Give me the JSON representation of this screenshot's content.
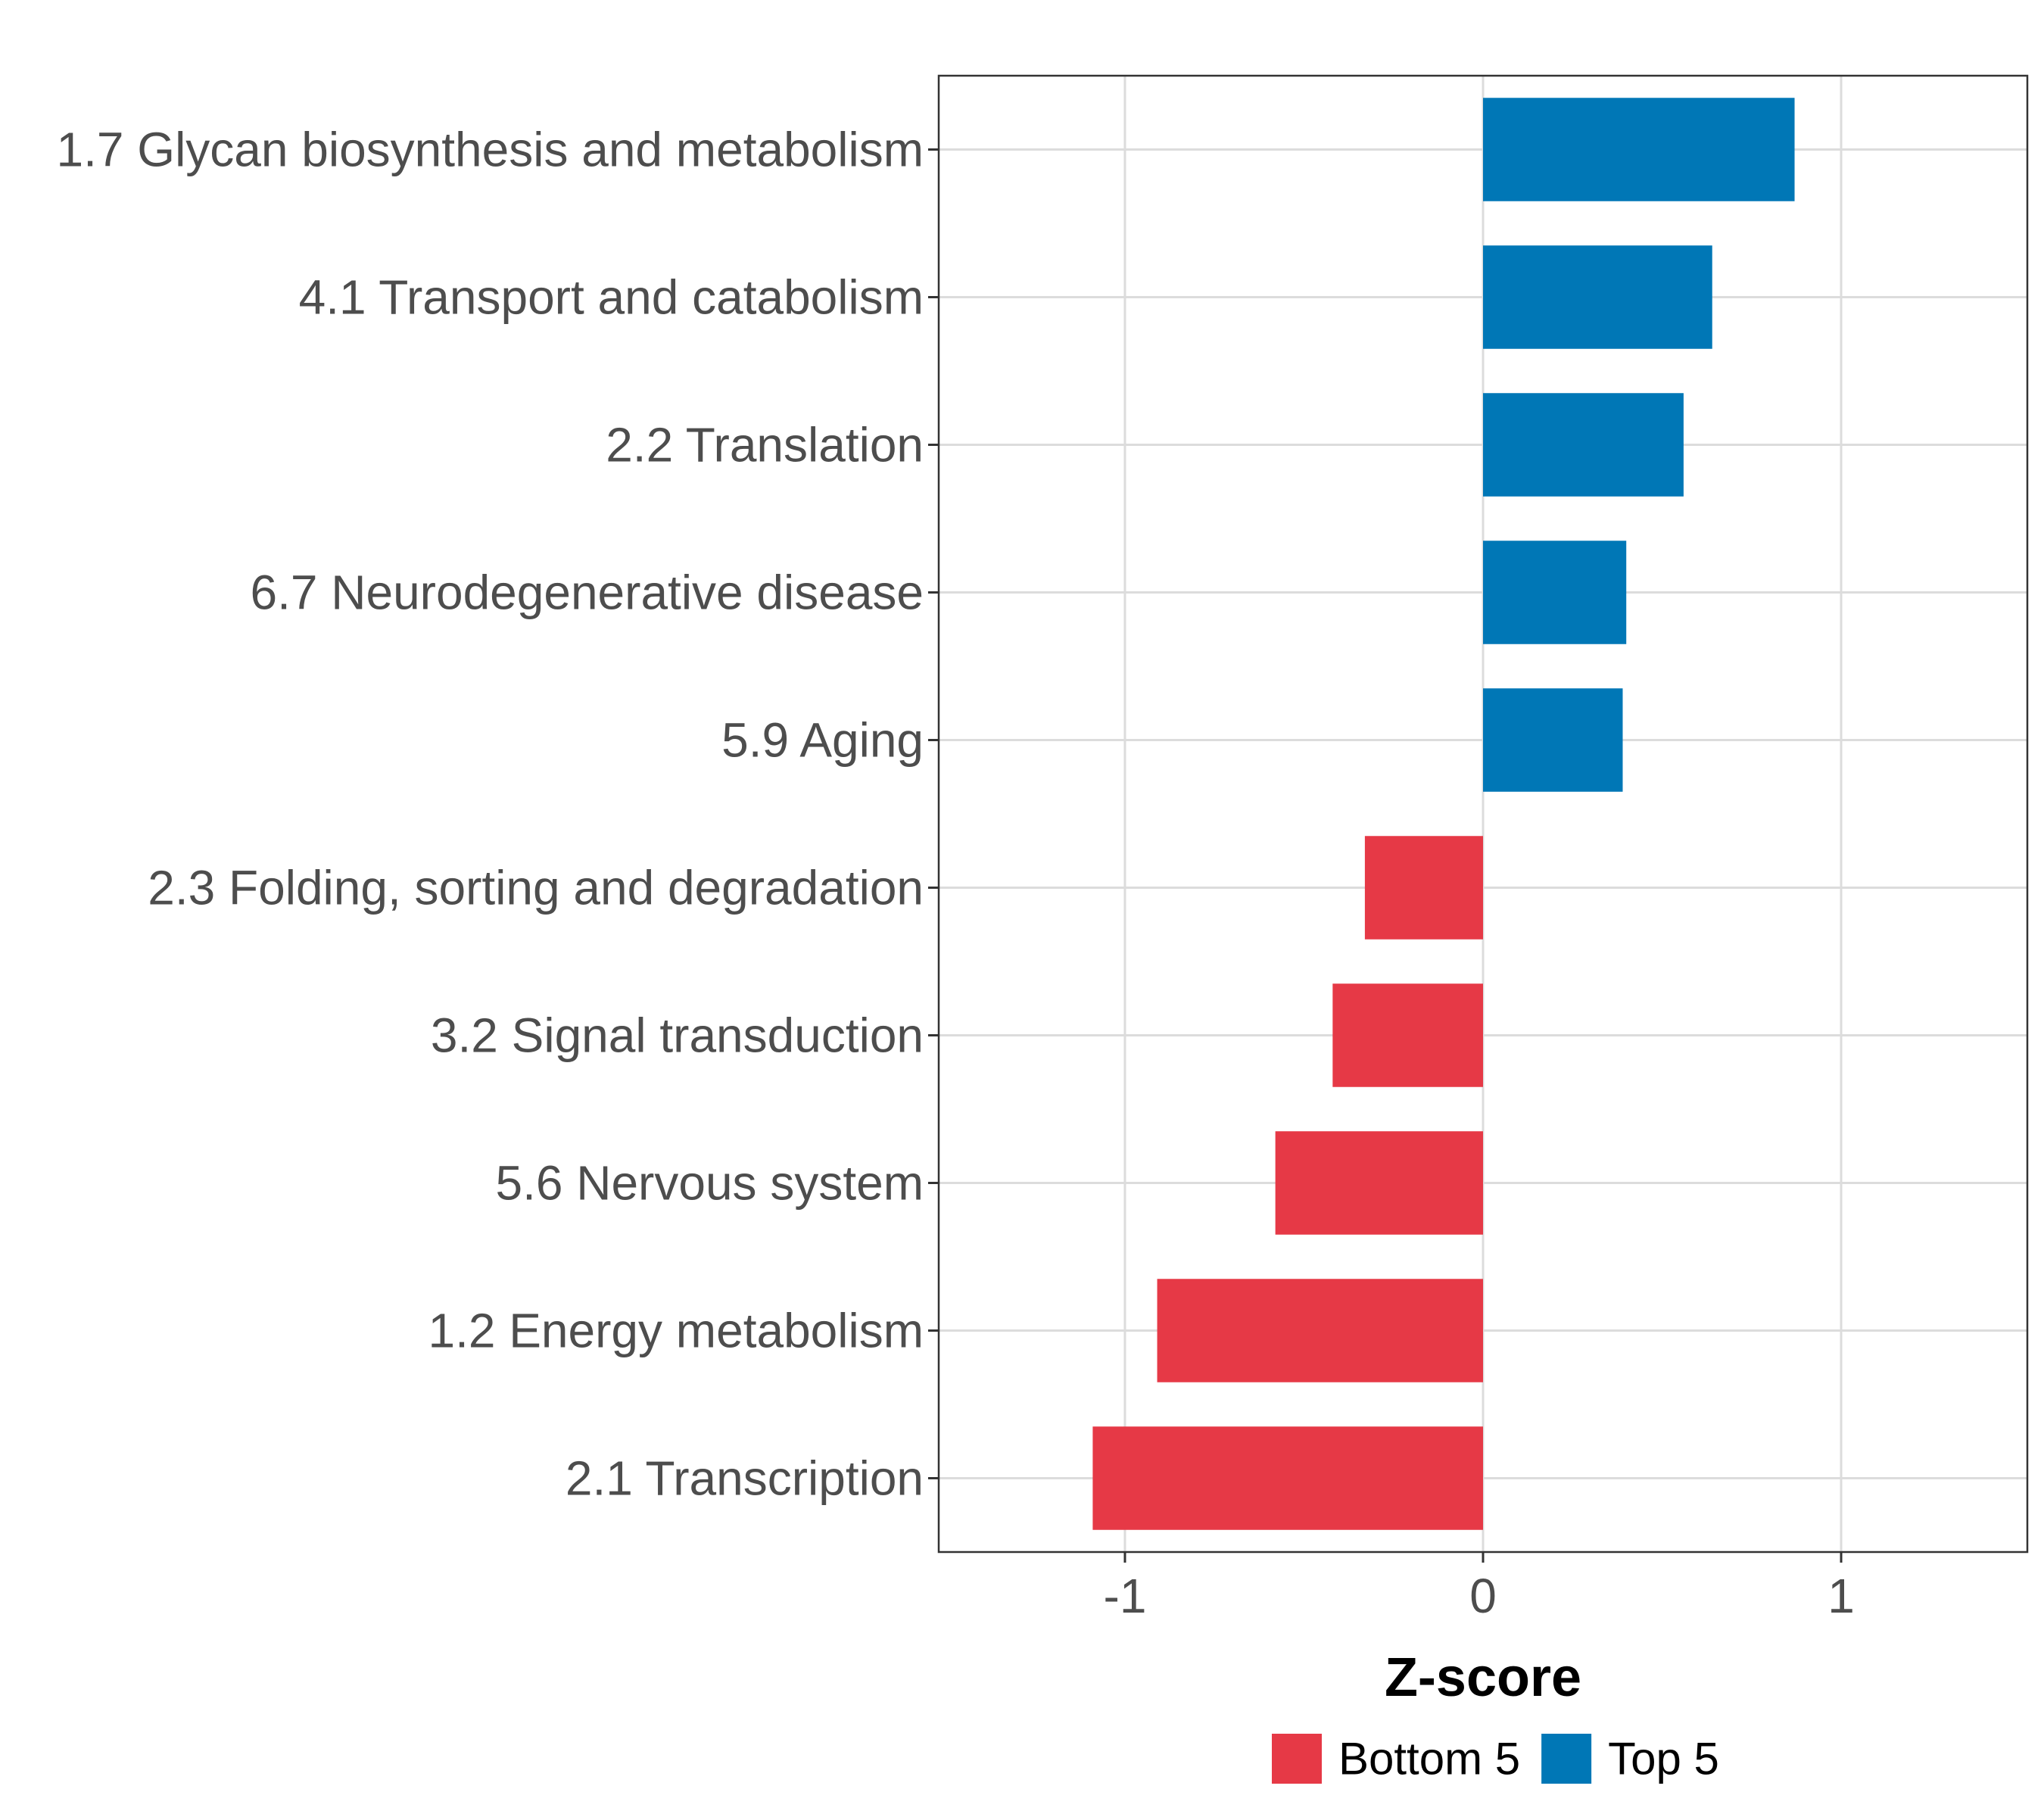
{
  "chart_data": {
    "type": "bar",
    "orientation": "horizontal",
    "title": "",
    "xlabel": "Z-score",
    "ylabel": "",
    "xlim": [
      -1.52,
      1.52
    ],
    "xticks": [
      -1,
      0,
      1
    ],
    "xtick_labels": [
      "-1",
      "0",
      "1"
    ],
    "grid": true,
    "legend_position": "bottom",
    "categories": [
      "1.7 Glycan biosynthesis and metabolism",
      "4.1 Transport and catabolism",
      "2.2 Translation",
      "6.7 Neurodegenerative disease",
      "5.9 Aging",
      "2.3 Folding, sorting and degradation",
      "3.2 Signal transduction",
      "5.6 Nervous system",
      "1.2 Energy metabolism",
      "2.1 Transcription"
    ],
    "values": [
      0.87,
      0.64,
      0.56,
      0.4,
      0.39,
      -0.33,
      -0.42,
      -0.58,
      -0.91,
      -1.09
    ],
    "groups": [
      "Top 5",
      "Top 5",
      "Top 5",
      "Top 5",
      "Top 5",
      "Bottom 5",
      "Bottom 5",
      "Bottom 5",
      "Bottom 5",
      "Bottom 5"
    ],
    "legend": [
      {
        "name": "Bottom 5",
        "color": "#e63946"
      },
      {
        "name": "Top 5",
        "color": "#0077b6"
      }
    ]
  }
}
